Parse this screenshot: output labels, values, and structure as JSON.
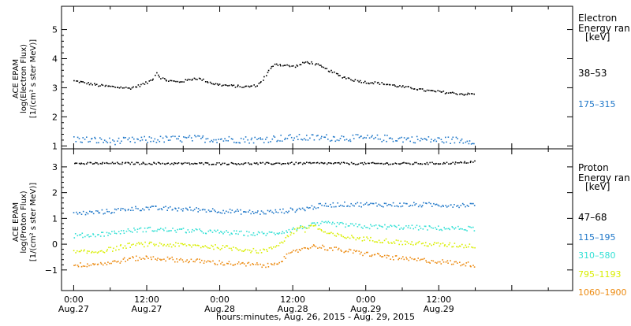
{
  "chart_data": [
    {
      "type": "scatter",
      "panel": "electron",
      "ylabel_lines": [
        "ACE EPAM",
        "log(Electron Flux)",
        "[1/(cm² s ster MeV)]"
      ],
      "ylim": [
        0.9,
        5.8
      ],
      "yticks": [
        1,
        2,
        3,
        4,
        5
      ],
      "legend_title_lines": [
        "Electron",
        "Energy ran",
        "[keV]"
      ],
      "series": [
        {
          "name": "38–53",
          "color": "#000000",
          "points": [
            [
              0,
              3.25
            ],
            [
              1,
              3.22
            ],
            [
              2,
              3.18
            ],
            [
              3,
              3.14
            ],
            [
              4,
              3.1
            ],
            [
              5,
              3.08
            ],
            [
              6,
              3.06
            ],
            [
              7,
              3.04
            ],
            [
              8,
              3.03
            ],
            [
              9,
              3.0
            ],
            [
              10,
              3.05
            ],
            [
              11,
              3.12
            ],
            [
              12,
              3.2
            ],
            [
              13,
              3.35
            ],
            [
              13.5,
              3.55
            ],
            [
              14,
              3.4
            ],
            [
              15,
              3.28
            ],
            [
              16,
              3.25
            ],
            [
              17,
              3.22
            ],
            [
              18,
              3.25
            ],
            [
              19,
              3.3
            ],
            [
              20,
              3.35
            ],
            [
              21,
              3.3
            ],
            [
              22,
              3.22
            ],
            [
              23,
              3.15
            ],
            [
              24,
              3.12
            ],
            [
              25,
              3.1
            ],
            [
              26,
              3.08
            ],
            [
              27,
              3.07
            ],
            [
              28,
              3.05
            ],
            [
              29,
              3.07
            ],
            [
              30,
              3.1
            ],
            [
              31,
              3.3
            ],
            [
              32,
              3.6
            ],
            [
              33,
              3.85
            ],
            [
              34,
              3.8
            ],
            [
              35,
              3.78
            ],
            [
              36,
              3.75
            ],
            [
              37,
              3.8
            ],
            [
              38,
              3.9
            ],
            [
              39,
              3.88
            ],
            [
              40,
              3.8
            ],
            [
              41,
              3.7
            ],
            [
              42,
              3.6
            ],
            [
              43,
              3.5
            ],
            [
              44,
              3.4
            ],
            [
              45,
              3.35
            ],
            [
              46,
              3.28
            ],
            [
              47,
              3.25
            ],
            [
              48,
              3.2
            ],
            [
              49,
              3.2
            ],
            [
              50,
              3.18
            ],
            [
              51,
              3.15
            ],
            [
              52,
              3.12
            ],
            [
              53,
              3.08
            ],
            [
              54,
              3.05
            ],
            [
              55,
              3.02
            ],
            [
              56,
              3.0
            ],
            [
              57,
              2.95
            ],
            [
              58,
              2.92
            ],
            [
              59,
              2.9
            ],
            [
              60,
              2.88
            ],
            [
              61,
              2.86
            ],
            [
              62,
              2.84
            ],
            [
              63,
              2.82
            ],
            [
              64,
              2.8
            ],
            [
              65,
              2.8
            ],
            [
              66,
              2.82
            ]
          ]
        },
        {
          "name": "175–315",
          "color": "#1f77c8",
          "points": [
            [
              0,
              1.25
            ],
            [
              3,
              1.22
            ],
            [
              6,
              1.18
            ],
            [
              9,
              1.2
            ],
            [
              12,
              1.23
            ],
            [
              15,
              1.25
            ],
            [
              18,
              1.26
            ],
            [
              21,
              1.27
            ],
            [
              24,
              1.25
            ],
            [
              27,
              1.24
            ],
            [
              30,
              1.23
            ],
            [
              33,
              1.28
            ],
            [
              36,
              1.3
            ],
            [
              39,
              1.3
            ],
            [
              42,
              1.3
            ],
            [
              45,
              1.3
            ],
            [
              48,
              1.28
            ],
            [
              51,
              1.28
            ],
            [
              54,
              1.26
            ],
            [
              57,
              1.24
            ],
            [
              60,
              1.22
            ],
            [
              63,
              1.22
            ],
            [
              66,
              1.2
            ]
          ]
        }
      ]
    },
    {
      "type": "scatter",
      "panel": "proton",
      "ylabel_lines": [
        "ACE EPAM",
        "log(Proton Flux)",
        "[1/(cm² s ster MeV)]"
      ],
      "ylim": [
        -1.8,
        3.7
      ],
      "yticks": [
        -1,
        0,
        1,
        2,
        3
      ],
      "legend_title_lines": [
        "Proton",
        "Energy ran",
        "[keV]"
      ],
      "series": [
        {
          "name": "47–68",
          "color": "#000000",
          "points": [
            [
              0,
              3.15
            ],
            [
              6,
              3.16
            ],
            [
              12,
              3.16
            ],
            [
              18,
              3.15
            ],
            [
              24,
              3.15
            ],
            [
              30,
              3.15
            ],
            [
              36,
              3.16
            ],
            [
              42,
              3.16
            ],
            [
              48,
              3.15
            ],
            [
              54,
              3.15
            ],
            [
              60,
              3.16
            ],
            [
              64,
              3.18
            ],
            [
              66,
              3.25
            ]
          ]
        },
        {
          "name": "115–195",
          "color": "#1f77c8",
          "points": [
            [
              0,
              1.2
            ],
            [
              3,
              1.25
            ],
            [
              6,
              1.3
            ],
            [
              9,
              1.4
            ],
            [
              12,
              1.42
            ],
            [
              15,
              1.4
            ],
            [
              18,
              1.38
            ],
            [
              21,
              1.36
            ],
            [
              24,
              1.32
            ],
            [
              27,
              1.28
            ],
            [
              30,
              1.25
            ],
            [
              33,
              1.28
            ],
            [
              36,
              1.35
            ],
            [
              38,
              1.4
            ],
            [
              40,
              1.5
            ],
            [
              42,
              1.55
            ],
            [
              45,
              1.57
            ],
            [
              48,
              1.56
            ],
            [
              51,
              1.56
            ],
            [
              54,
              1.55
            ],
            [
              57,
              1.55
            ],
            [
              60,
              1.55
            ],
            [
              63,
              1.54
            ],
            [
              66,
              1.56
            ]
          ]
        },
        {
          "name": "310–580",
          "color": "#33e0d5",
          "points": [
            [
              0,
              0.35
            ],
            [
              3,
              0.38
            ],
            [
              6,
              0.45
            ],
            [
              9,
              0.55
            ],
            [
              12,
              0.6
            ],
            [
              15,
              0.58
            ],
            [
              18,
              0.55
            ],
            [
              21,
              0.52
            ],
            [
              24,
              0.48
            ],
            [
              27,
              0.45
            ],
            [
              30,
              0.42
            ],
            [
              33,
              0.45
            ],
            [
              35,
              0.55
            ],
            [
              37,
              0.65
            ],
            [
              39,
              0.75
            ],
            [
              41,
              0.82
            ],
            [
              43,
              0.8
            ],
            [
              45,
              0.75
            ],
            [
              48,
              0.7
            ],
            [
              51,
              0.7
            ],
            [
              54,
              0.68
            ],
            [
              57,
              0.66
            ],
            [
              60,
              0.64
            ],
            [
              63,
              0.63
            ],
            [
              66,
              0.63
            ]
          ]
        },
        {
          "name": "795–1193",
          "color": "#d9ee00",
          "points": [
            [
              0,
              -0.3
            ],
            [
              3,
              -0.28
            ],
            [
              6,
              -0.18
            ],
            [
              9,
              -0.02
            ],
            [
              12,
              0.02
            ],
            [
              15,
              0.0
            ],
            [
              18,
              -0.02
            ],
            [
              21,
              -0.05
            ],
            [
              24,
              -0.1
            ],
            [
              27,
              -0.15
            ],
            [
              30,
              -0.25
            ],
            [
              32,
              -0.2
            ],
            [
              34,
              0.1
            ],
            [
              36,
              0.5
            ],
            [
              37,
              0.7
            ],
            [
              38,
              0.55
            ],
            [
              39,
              0.8
            ],
            [
              40,
              0.65
            ],
            [
              41,
              0.5
            ],
            [
              42,
              0.4
            ],
            [
              45,
              0.3
            ],
            [
              48,
              0.22
            ],
            [
              51,
              0.16
            ],
            [
              54,
              0.08
            ],
            [
              57,
              0.04
            ],
            [
              60,
              0.0
            ],
            [
              63,
              -0.02
            ],
            [
              66,
              -0.05
            ]
          ]
        },
        {
          "name": "1060–1900",
          "color": "#ec8a10",
          "points": [
            [
              0,
              -0.8
            ],
            [
              3,
              -0.75
            ],
            [
              6,
              -0.7
            ],
            [
              9,
              -0.55
            ],
            [
              12,
              -0.5
            ],
            [
              15,
              -0.55
            ],
            [
              18,
              -0.6
            ],
            [
              21,
              -0.65
            ],
            [
              24,
              -0.7
            ],
            [
              27,
              -0.75
            ],
            [
              30,
              -0.78
            ],
            [
              32,
              -0.82
            ],
            [
              34,
              -0.6
            ],
            [
              36,
              -0.3
            ],
            [
              38,
              -0.1
            ],
            [
              40,
              -0.05
            ],
            [
              42,
              -0.15
            ],
            [
              45,
              -0.25
            ],
            [
              48,
              -0.35
            ],
            [
              51,
              -0.45
            ],
            [
              54,
              -0.55
            ],
            [
              57,
              -0.6
            ],
            [
              60,
              -0.65
            ],
            [
              63,
              -0.72
            ],
            [
              66,
              -0.78
            ]
          ]
        }
      ]
    }
  ],
  "x_axis": {
    "ticks": [
      {
        "hours": 0,
        "time": "0:00",
        "date": "Aug.27"
      },
      {
        "hours": 12,
        "time": "12:00",
        "date": "Aug.27"
      },
      {
        "hours": 24,
        "time": "0:00",
        "date": "Aug.28"
      },
      {
        "hours": 36,
        "time": "12:00",
        "date": "Aug.28"
      },
      {
        "hours": 48,
        "time": "0:00",
        "date": "Aug.29"
      },
      {
        "hours": 60,
        "time": "12:00",
        "date": "Aug.29"
      }
    ],
    "range_hours": [
      -2,
      82
    ],
    "label": "hours:minutes, Aug. 26, 2015 - Aug. 29, 2015"
  }
}
